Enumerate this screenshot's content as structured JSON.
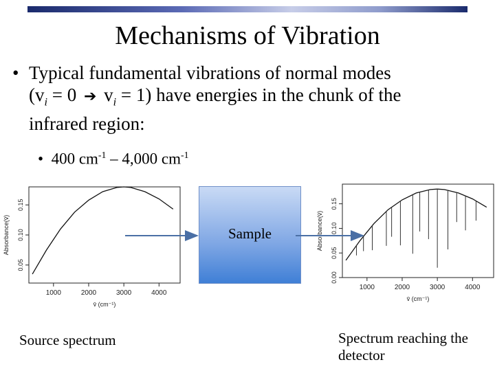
{
  "slide": {
    "title": "Mechanisms of Vibration",
    "bullet1": {
      "line1": "Typical fundamental vibrations of normal modes",
      "open": "(v",
      "sub1": "i",
      "eq1": " = 0",
      "v2": "v",
      "sub2": "i",
      "eq2": " = 1) have energies in the chunk of the",
      "line3": "infrared region:"
    },
    "bullet2": {
      "a": "400 cm",
      "exp1": "-1",
      "b": " – 4,000 cm",
      "exp2": "-1"
    },
    "sample_label": "Sample",
    "caption_left": "Source spectrum",
    "caption_right": "Spectrum reaching the detector",
    "arrow_icon": "right-arrow-icon"
  },
  "chart_data": [
    {
      "type": "line",
      "title": "",
      "xlabel": "v̄ (cm⁻¹)",
      "ylabel": "Absorbance(v̄)",
      "x_ticks": [
        1000,
        2000,
        3000,
        4000
      ],
      "y_ticks": [
        "0.05",
        "0.10",
        "0.15"
      ],
      "xlim": [
        300,
        4600
      ],
      "ylim": [
        0.02,
        0.18
      ],
      "series": [
        {
          "x": [
            400,
            800,
            1200,
            1600,
            2000,
            2400,
            2800,
            3000,
            3200,
            3600,
            4000,
            4400
          ],
          "y": [
            0.035,
            0.075,
            0.11,
            0.138,
            0.158,
            0.172,
            0.179,
            0.18,
            0.179,
            0.172,
            0.16,
            0.143
          ]
        }
      ],
      "grid": false
    },
    {
      "type": "line",
      "title": "",
      "xlabel": "v̄ (cm⁻¹)",
      "ylabel": "Absorbance(v̄)",
      "x_ticks": [
        1000,
        2000,
        3000,
        4000
      ],
      "y_ticks": [
        "0.00",
        "0.05",
        "0.10",
        "0.15"
      ],
      "xlim": [
        300,
        4600
      ],
      "ylim": [
        0.0,
        0.19
      ],
      "series": [
        {
          "x": [
            400,
            800,
            1200,
            1600,
            2000,
            2400,
            2800,
            3000,
            3200,
            3600,
            4000,
            4400
          ],
          "y": [
            0.035,
            0.075,
            0.11,
            0.138,
            0.158,
            0.172,
            0.179,
            0.18,
            0.179,
            0.172,
            0.16,
            0.143
          ]
        }
      ],
      "absorption_lines": [
        {
          "x": 700,
          "depth": 0.02
        },
        {
          "x": 900,
          "depth": 0.03
        },
        {
          "x": 1150,
          "depth": 0.05
        },
        {
          "x": 1550,
          "depth": 0.07
        },
        {
          "x": 1700,
          "depth": 0.06
        },
        {
          "x": 1950,
          "depth": 0.09
        },
        {
          "x": 2300,
          "depth": 0.12
        },
        {
          "x": 2500,
          "depth": 0.08
        },
        {
          "x": 2750,
          "depth": 0.1
        },
        {
          "x": 3000,
          "depth": 0.16
        },
        {
          "x": 3300,
          "depth": 0.12
        },
        {
          "x": 3550,
          "depth": 0.06
        },
        {
          "x": 3800,
          "depth": 0.07
        },
        {
          "x": 4100,
          "depth": 0.04
        }
      ],
      "grid": false
    }
  ]
}
